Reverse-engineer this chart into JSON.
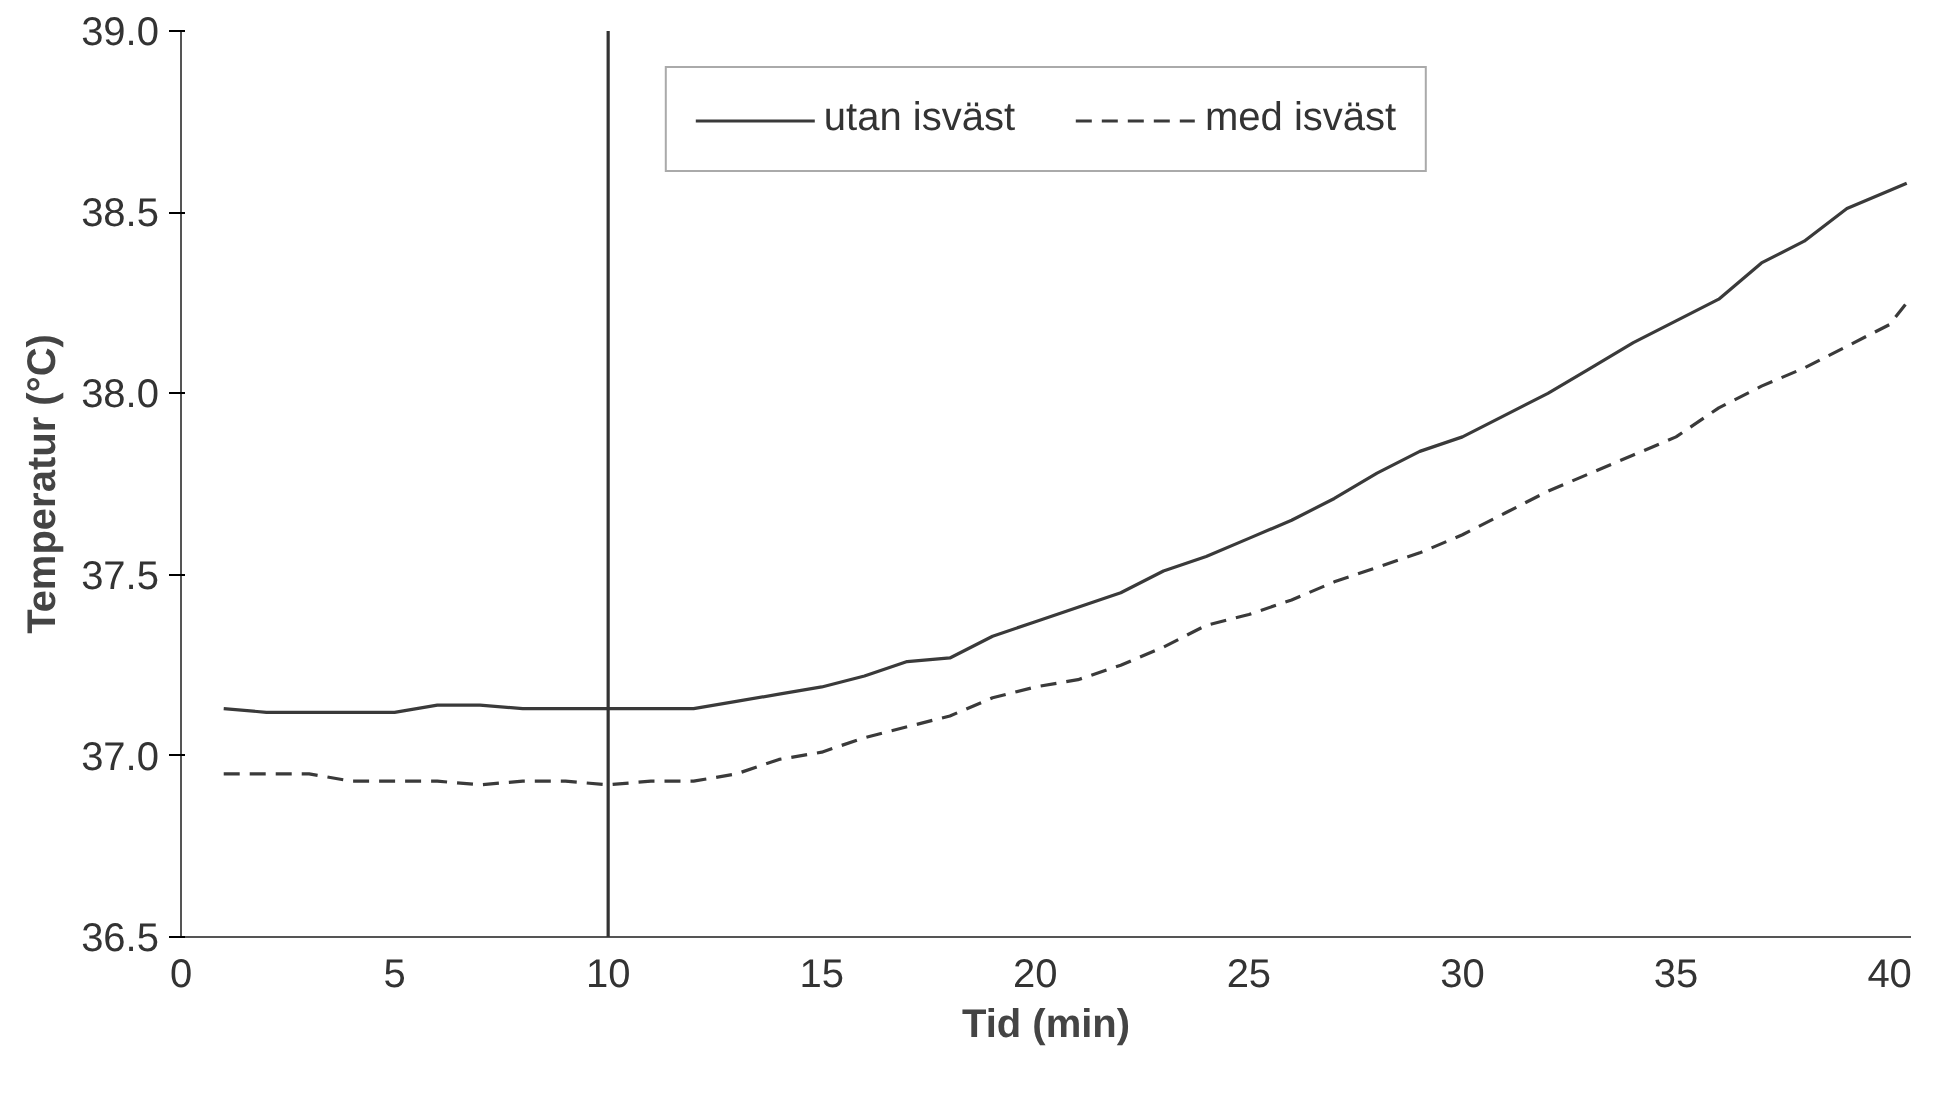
{
  "chart_data": {
    "type": "line",
    "xlabel": "Tid (min)",
    "ylabel": "Temperatur (°C)",
    "xlim": [
      0,
      40.5
    ],
    "ylim": [
      36.5,
      39.0
    ],
    "xticks": [
      0,
      5,
      10,
      15,
      20,
      25,
      30,
      35,
      40
    ],
    "yticks": [
      {
        "value": 36.5,
        "label": "36.5"
      },
      {
        "value": 37,
        "label": "37.0"
      },
      {
        "value": 37.5,
        "label": "37.5"
      },
      {
        "value": 38,
        "label": "38.0"
      },
      {
        "value": 38.5,
        "label": "38.5"
      },
      {
        "value": 39,
        "label": "39.0"
      }
    ],
    "grid": false,
    "legend": "top",
    "marker": "none",
    "ref_lines": [
      {
        "axis": "x",
        "value": 10,
        "color": "#333333"
      }
    ],
    "series": [
      {
        "name": "utan isväst",
        "color": "#3a3a3a",
        "line_style": "solid",
        "x": [
          1,
          2,
          5,
          6,
          7,
          8,
          10,
          12,
          13,
          14,
          15,
          16,
          17,
          18,
          19,
          20,
          21,
          22,
          23,
          24,
          25,
          26,
          27,
          28,
          29,
          30,
          31,
          32,
          33,
          34,
          35,
          36,
          37,
          38,
          39,
          40,
          40.4
        ],
        "values": [
          37.13,
          37.12,
          37.12,
          37.14,
          37.14,
          37.13,
          37.13,
          37.13,
          37.15,
          37.17,
          37.19,
          37.22,
          37.26,
          37.27,
          37.33,
          37.37,
          37.41,
          37.45,
          37.51,
          37.55,
          37.6,
          37.65,
          37.71,
          37.78,
          37.84,
          37.88,
          37.94,
          38.0,
          38.07,
          38.14,
          38.2,
          38.26,
          38.36,
          38.42,
          38.51,
          38.56,
          38.58
        ]
      },
      {
        "name": "med isväst",
        "color": "#3a3a3a",
        "line_style": "dashed",
        "x": [
          1,
          3,
          4,
          5,
          6,
          7,
          8,
          9,
          10,
          11,
          12,
          13,
          14,
          15,
          16,
          17,
          18,
          19,
          20,
          21,
          22,
          23,
          24,
          25,
          26,
          27,
          28,
          29,
          30,
          31,
          32,
          33,
          34,
          35,
          36,
          37,
          38,
          39,
          40,
          40.4
        ],
        "values": [
          36.95,
          36.95,
          36.93,
          36.93,
          36.93,
          36.92,
          36.93,
          36.93,
          36.92,
          36.93,
          36.93,
          36.95,
          36.99,
          37.01,
          37.05,
          37.08,
          37.11,
          37.16,
          37.19,
          37.21,
          37.25,
          37.3,
          37.36,
          37.39,
          37.43,
          37.48,
          37.52,
          37.56,
          37.61,
          37.67,
          37.73,
          37.78,
          37.83,
          37.88,
          37.96,
          38.02,
          38.07,
          38.13,
          38.19,
          38.25
        ]
      }
    ]
  }
}
